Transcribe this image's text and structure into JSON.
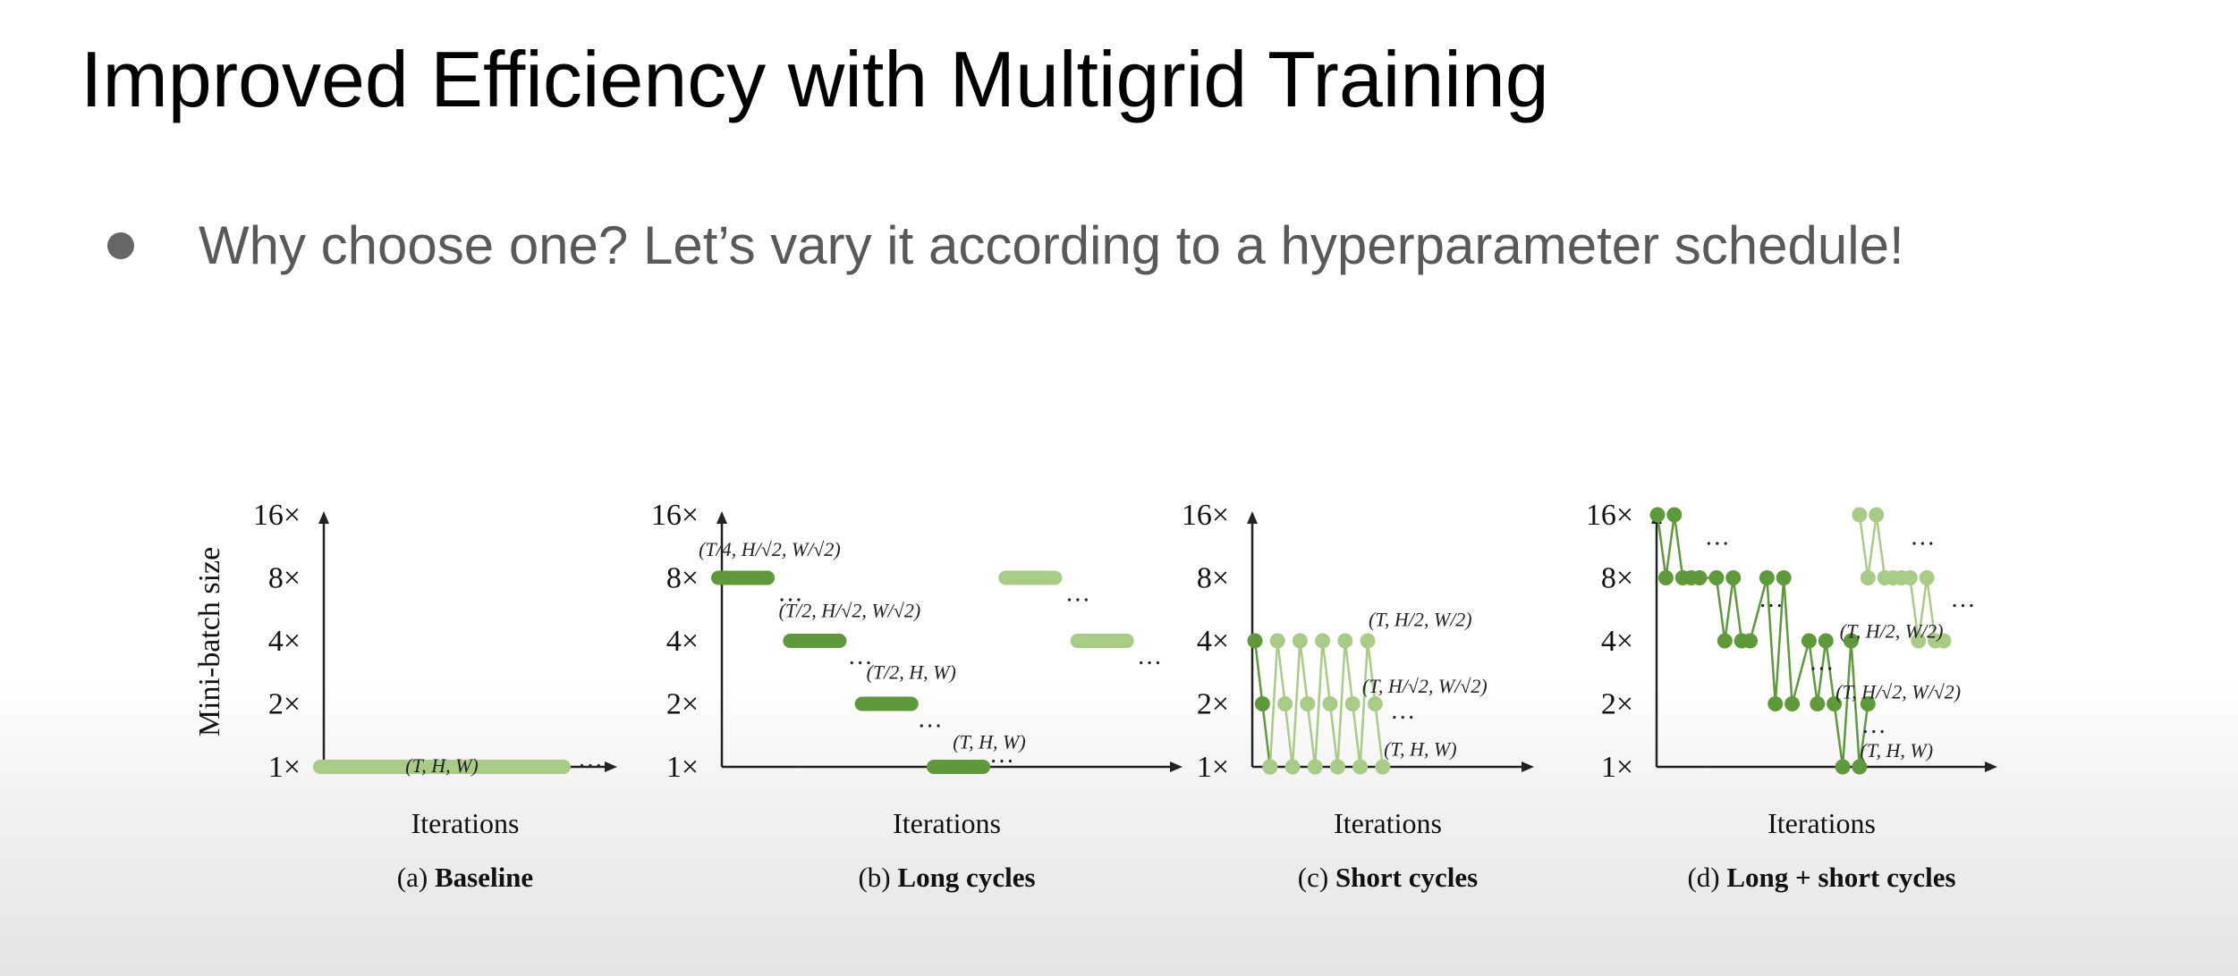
{
  "slide": {
    "title": "Improved Efficiency with Multigrid Training",
    "bullet": "Why choose one? Let’s vary it according to a hyperparameter schedule!"
  },
  "colors": {
    "dark": "#5e9a3a",
    "light": "#a8cb85",
    "axis": "#222222"
  },
  "chart_data": [
    {
      "type": "line",
      "panel": "a",
      "caption_prefix": "(a)",
      "caption": "Baseline",
      "xlabel": "Iterations",
      "ylabel": "Mini-batch size",
      "y_ticks": [
        "1×",
        "2×",
        "4×",
        "8×",
        "16×"
      ],
      "series": [
        {
          "shade": "light",
          "style": "bar",
          "points": [
            [
              0,
              1
            ],
            [
              12,
              1
            ]
          ]
        }
      ],
      "annotations": [
        {
          "text": "(T, H, W)",
          "x": 6,
          "y": 1
        },
        {
          "text": "…",
          "x": 12.7,
          "y": 1
        }
      ]
    },
    {
      "type": "line",
      "panel": "b",
      "caption_prefix": "(b)",
      "caption": "Long cycles",
      "xlabel": "Iterations",
      "y_ticks": [
        "1×",
        "2×",
        "4×",
        "8×",
        "16×"
      ],
      "series": [
        {
          "shade": "dark",
          "style": "bar",
          "points": [
            [
              0,
              8
            ],
            [
              2.4,
              8
            ]
          ]
        },
        {
          "shade": "dark",
          "style": "bar",
          "points": [
            [
              3.5,
              4
            ],
            [
              5.9,
              4
            ]
          ]
        },
        {
          "shade": "dark",
          "style": "bar",
          "points": [
            [
              7,
              2
            ],
            [
              9.4,
              2
            ]
          ]
        },
        {
          "shade": "dark",
          "style": "bar",
          "points": [
            [
              10.5,
              1
            ],
            [
              12.9,
              1
            ]
          ]
        },
        {
          "shade": "light",
          "style": "bar",
          "points": [
            [
              14,
              8
            ],
            [
              16.4,
              8
            ]
          ]
        },
        {
          "shade": "light",
          "style": "bar",
          "points": [
            [
              17.5,
              4
            ],
            [
              19.9,
              4
            ]
          ]
        }
      ],
      "annotations": [
        {
          "text": "(T/4, H/√2, W/√2)",
          "x": 2.5,
          "y": 10.8
        },
        {
          "text": "(T/2, H/√2, W/√2)",
          "x": 6.4,
          "y": 5.5
        },
        {
          "text": "(T/2, H, W)",
          "x": 9.4,
          "y": 2.8
        },
        {
          "text": "(T, H, W)",
          "x": 13.2,
          "y": 1.3
        },
        {
          "text": "…",
          "x": 2.9,
          "y": 6.2
        },
        {
          "text": "…",
          "x": 6.3,
          "y": 3.1
        },
        {
          "text": "…",
          "x": 9.7,
          "y": 1.55
        },
        {
          "text": "…",
          "x": 13.2,
          "y": 1.05
        },
        {
          "text": "…",
          "x": 16.9,
          "y": 6.2
        },
        {
          "text": "…",
          "x": 20.4,
          "y": 3.1
        }
      ]
    },
    {
      "type": "line",
      "panel": "c",
      "caption_prefix": "(c)",
      "caption": "Short cycles",
      "xlabel": "Iterations",
      "y_ticks": [
        "1×",
        "2×",
        "4×",
        "8×",
        "16×"
      ],
      "series": [
        {
          "shade": "dark",
          "style": "line",
          "points": [
            [
              0,
              4
            ],
            [
              0.5,
              2
            ],
            [
              1,
              1
            ]
          ]
        },
        {
          "shade": "light",
          "style": "line",
          "points": [
            [
              1,
              1
            ],
            [
              1.5,
              4
            ],
            [
              2,
              2
            ],
            [
              2.5,
              1
            ],
            [
              3,
              4
            ],
            [
              3.5,
              2
            ],
            [
              4,
              1
            ],
            [
              4.5,
              4
            ],
            [
              5,
              2
            ],
            [
              5.5,
              1
            ],
            [
              6,
              4
            ],
            [
              6.5,
              2
            ],
            [
              7,
              1
            ],
            [
              7.5,
              4
            ],
            [
              8,
              2
            ],
            [
              8.5,
              1
            ]
          ]
        }
      ],
      "annotations": [
        {
          "text": "(T, H/2, W/2)",
          "x": 11,
          "y": 5
        },
        {
          "text": "(T, H/√2, W/√2)",
          "x": 11.3,
          "y": 2.4
        },
        {
          "text": "(T, H, W)",
          "x": 11,
          "y": 1.2
        },
        {
          "text": "…",
          "x": 9,
          "y": 1.7
        }
      ]
    },
    {
      "type": "line",
      "panel": "d",
      "caption_prefix": "(d)",
      "caption": "Long + short cycles",
      "xlabel": "Iterations",
      "y_ticks": [
        "1×",
        "2×",
        "4×",
        "8×",
        "16×"
      ],
      "series": [
        {
          "shade": "dark",
          "style": "line",
          "points": [
            [
              0,
              16
            ],
            [
              0.5,
              8
            ],
            [
              1,
              16
            ],
            [
              1.5,
              8
            ],
            [
              2,
              8
            ],
            [
              2.5,
              8
            ],
            [
              3.5,
              8
            ],
            [
              4,
              4
            ],
            [
              4.5,
              8
            ],
            [
              5,
              4
            ],
            [
              5.5,
              4
            ],
            [
              6.5,
              8
            ],
            [
              7,
              2
            ],
            [
              7.5,
              8
            ],
            [
              8,
              2
            ],
            [
              9,
              4
            ],
            [
              9.5,
              2
            ],
            [
              10,
              4
            ],
            [
              10.5,
              2
            ],
            [
              11,
              1
            ],
            [
              11.5,
              4
            ],
            [
              12,
              1
            ],
            [
              12.5,
              2
            ]
          ]
        },
        {
          "shade": "light",
          "style": "line",
          "points": [
            [
              12,
              16
            ],
            [
              12.5,
              8
            ],
            [
              13,
              16
            ],
            [
              13.5,
              8
            ],
            [
              14,
              8
            ],
            [
              14.5,
              8
            ],
            [
              15,
              8
            ],
            [
              15.5,
              4
            ],
            [
              16,
              8
            ],
            [
              16.5,
              4
            ],
            [
              17,
              4
            ]
          ]
        }
      ],
      "annotations": [
        {
          "text": "(T, H/2, W/2)",
          "x": 13.9,
          "y": 4.4
        },
        {
          "text": "(T, H/√2, W/√2)",
          "x": 14.3,
          "y": 2.25
        },
        {
          "text": "(T, H, W)",
          "x": 14.2,
          "y": 1.18
        },
        {
          "text": "…",
          "x": 2.8,
          "y": 11.5
        },
        {
          "text": "…",
          "x": 6,
          "y": 5.8
        },
        {
          "text": "…",
          "x": 9,
          "y": 2.9
        },
        {
          "text": "…",
          "x": 12.1,
          "y": 1.45
        },
        {
          "text": "…",
          "x": 15,
          "y": 11.5
        },
        {
          "text": "…",
          "x": 17.4,
          "y": 5.8
        }
      ]
    }
  ]
}
